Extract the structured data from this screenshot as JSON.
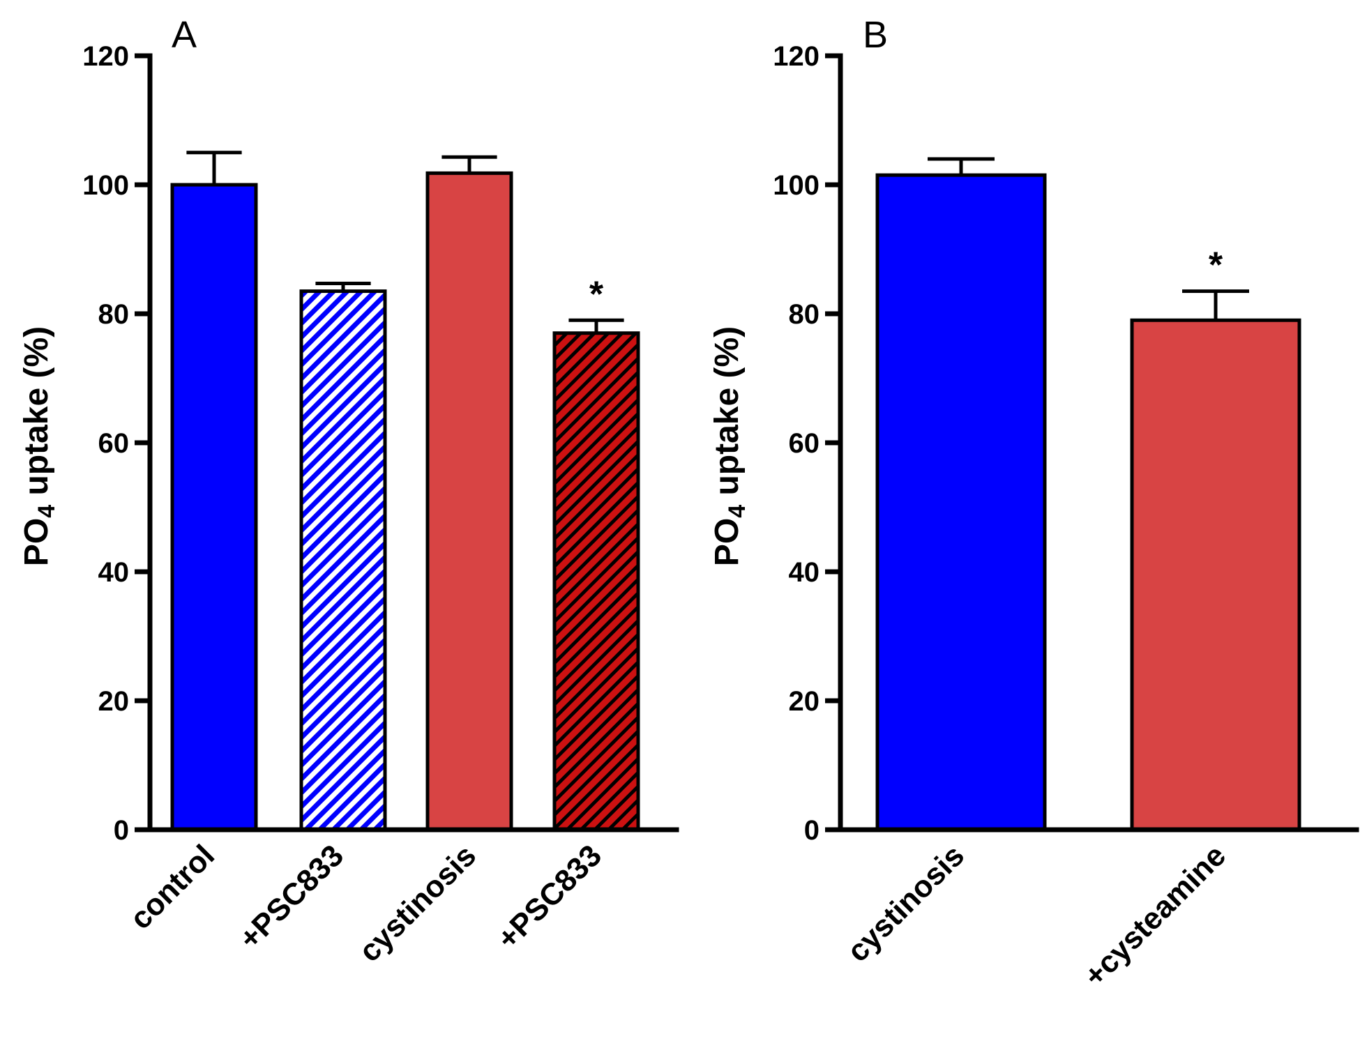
{
  "chart_data": [
    {
      "panel": "A",
      "type": "bar",
      "ylabel": "PO4 uptake (%)",
      "ylabel_main": "PO",
      "ylabel_sub": "4",
      "ylabel_rest": " uptake (%)",
      "ylim": [
        0,
        120
      ],
      "yticks": [
        "0",
        "20",
        "40",
        "60",
        "80",
        "100",
        "120"
      ],
      "categories": [
        "control",
        "+PSC833",
        "cystinosis",
        "+PSC833"
      ],
      "values": [
        100,
        83.5,
        101.8,
        77
      ],
      "errors": [
        5,
        1.2,
        2.5,
        2
      ],
      "fills": [
        "solid-blue",
        "hatch-blue",
        "solid-red",
        "hatch-red"
      ],
      "significance": [
        "",
        "",
        "",
        "*"
      ]
    },
    {
      "panel": "B",
      "type": "bar",
      "ylabel": "PO4 uptake (%)",
      "ylabel_main": "PO",
      "ylabel_sub": "4",
      "ylabel_rest": " uptake (%)",
      "ylim": [
        0,
        120
      ],
      "yticks": [
        "0",
        "20",
        "40",
        "60",
        "80",
        "100",
        "120"
      ],
      "categories": [
        "cystinosis",
        "+cysteamine"
      ],
      "values": [
        101.5,
        79
      ],
      "errors": [
        2.5,
        4.5
      ],
      "fills": [
        "solid-blue",
        "solid-red"
      ],
      "significance": [
        "",
        "*"
      ]
    }
  ],
  "colors": {
    "blue": "#0000ff",
    "red": "#d84444",
    "hatch_blue_bg": "#ffffff",
    "hatch_red_line": "#000000",
    "hatch_red_bg": "#cc1111"
  }
}
